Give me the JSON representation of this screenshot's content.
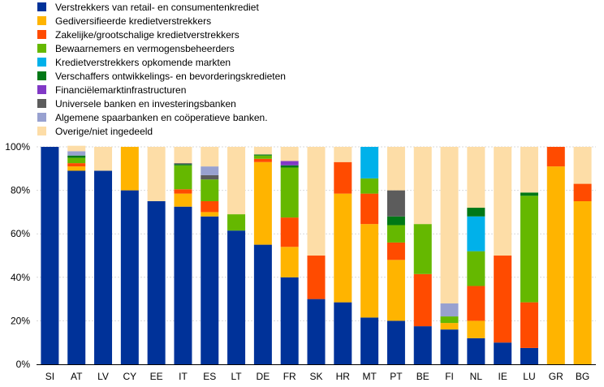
{
  "chart_data": {
    "type": "bar",
    "stacked": true,
    "title": "",
    "xlabel": "",
    "ylabel": "",
    "ylim": [
      0,
      100
    ],
    "y_ticks": [
      "0%",
      "20%",
      "40%",
      "60%",
      "80%",
      "100%"
    ],
    "legend_position": "top-left",
    "grid": "horizontal",
    "categories": [
      "SI",
      "AT",
      "LV",
      "CY",
      "EE",
      "IT",
      "ES",
      "LT",
      "DE",
      "FR",
      "SK",
      "HR",
      "MT",
      "PT",
      "BE",
      "FI",
      "NL",
      "IE",
      "LU",
      "GR",
      "BG"
    ],
    "series": [
      {
        "name": "Verstrekkers van retail- en consumentenkrediet",
        "color": "#003299",
        "values": [
          100,
          89,
          89,
          80,
          75,
          72.5,
          68,
          61.5,
          55,
          40,
          30,
          28.5,
          21.5,
          20,
          17.5,
          16,
          12,
          10,
          7.5,
          0,
          0
        ]
      },
      {
        "name": "Gediversifieerde kredietverstrekkers",
        "color": "#FFB400",
        "values": [
          0,
          2,
          0,
          20,
          0,
          6,
          2,
          0,
          38,
          14,
          0,
          50,
          43,
          28,
          0,
          3,
          8,
          0,
          0,
          91,
          75
        ]
      },
      {
        "name": "Zakelijke/grootschalige kredietverstrekkers",
        "color": "#FF4B00",
        "values": [
          0,
          1.5,
          0,
          0,
          0,
          2,
          5,
          0,
          1.5,
          13.5,
          20,
          14.5,
          14,
          8,
          24,
          0,
          16,
          40,
          21,
          9,
          8
        ]
      },
      {
        "name": "Bewaarnemers en vermogensbeheerders",
        "color": "#65B800",
        "values": [
          0,
          2.5,
          0,
          0,
          0,
          11,
          10,
          7.5,
          1.5,
          23,
          0,
          0,
          7,
          8,
          23,
          3,
          16,
          0,
          49,
          0,
          0
        ]
      },
      {
        "name": "Kredietverstrekkers opkomende markten",
        "color": "#00B1EA",
        "values": [
          0,
          0,
          0,
          0,
          0,
          0,
          0,
          0,
          0,
          0,
          0,
          0,
          14.5,
          0,
          0,
          0,
          16,
          0,
          0,
          0,
          0
        ]
      },
      {
        "name": "Verschaffers ontwikkelings- en bevorderingskredieten",
        "color": "#007816",
        "values": [
          0,
          1,
          0,
          0,
          0,
          0.5,
          0,
          0,
          0.5,
          1,
          0,
          0,
          0,
          4,
          0,
          0,
          4,
          0,
          1.5,
          0,
          0
        ]
      },
      {
        "name": "Financiëlemarktinfrastructuren",
        "color": "#8139C6",
        "values": [
          0,
          0,
          0,
          0,
          0,
          0,
          0,
          0,
          0,
          2,
          0,
          0,
          0,
          0,
          0,
          0,
          0,
          0,
          0,
          0,
          0
        ]
      },
      {
        "name": "Universele banken en investeringsbanken",
        "color": "#5C5C5C",
        "values": [
          0,
          0,
          0,
          0,
          0,
          0.5,
          2,
          0,
          0,
          0,
          0,
          0,
          0,
          12,
          0,
          0,
          0,
          0,
          0,
          0,
          0
        ]
      },
      {
        "name": "Algemene spaarbanken en coöperatieve banken.",
        "color": "#98A1D0",
        "values": [
          0,
          2,
          0,
          0,
          0,
          0,
          4,
          0,
          0,
          0,
          0,
          0,
          0,
          0,
          0,
          6,
          0,
          0,
          0,
          0,
          0
        ]
      },
      {
        "name": "Overige/niet ingedeeld",
        "color": "#FDDDA7",
        "values": [
          0,
          2.5,
          11,
          0,
          25,
          7.5,
          9,
          31,
          3.5,
          6.5,
          50,
          7,
          0,
          20,
          35.5,
          72,
          28,
          50,
          21,
          0,
          17
        ]
      }
    ]
  }
}
